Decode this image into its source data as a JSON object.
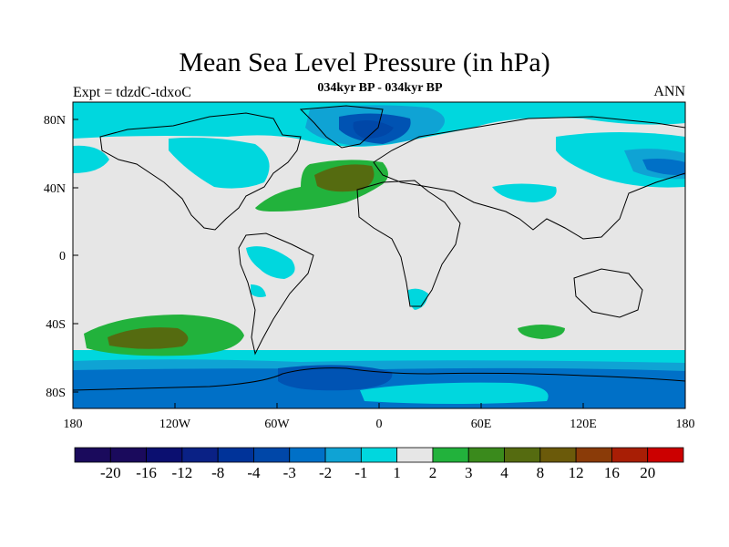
{
  "title": "Mean Sea Level Pressure (in hPa)",
  "subtitle": "034kyr BP - 034kyr BP",
  "experiment_label": "Expt = tdzdC-tdxoC",
  "season_label": "ANN",
  "colors": {
    "land_neutral": "#e6e6e6",
    "pos_1": "#22b23c",
    "pos_2": "#3a8a1c",
    "pos_3": "#556b10",
    "neg_1": "#00d7de",
    "neg_2": "#0fa3d4",
    "neg_3": "#0070c7",
    "neg_4": "#0053b3",
    "coast": "#000000"
  },
  "map": {
    "projection": "cylindrical equidistant",
    "lon_range": [
      -180,
      180
    ],
    "lat_range": [
      -90,
      90
    ],
    "x_ticks": [
      "180",
      "120W",
      "60W",
      "0",
      "60E",
      "120E",
      "180"
    ],
    "y_ticks": [
      "80N",
      "40N",
      "0",
      "40S",
      "80S"
    ]
  },
  "colorbar": {
    "labels": [
      "-20",
      "-16",
      "-12",
      "-8",
      "-4",
      "-3",
      "-2",
      "-1",
      "1",
      "2",
      "3",
      "4",
      "8",
      "12",
      "16",
      "20"
    ],
    "colors": [
      "#1a0a5c",
      "#0b0f70",
      "#0a2185",
      "#003399",
      "#0047a8",
      "#0070c7",
      "#0fa3d4",
      "#00d7de",
      "#e6e6e6",
      "#22b23c",
      "#3a8a1c",
      "#556b10",
      "#6b5a0a",
      "#8a3b08",
      "#a81e05",
      "#cc0000"
    ]
  }
}
